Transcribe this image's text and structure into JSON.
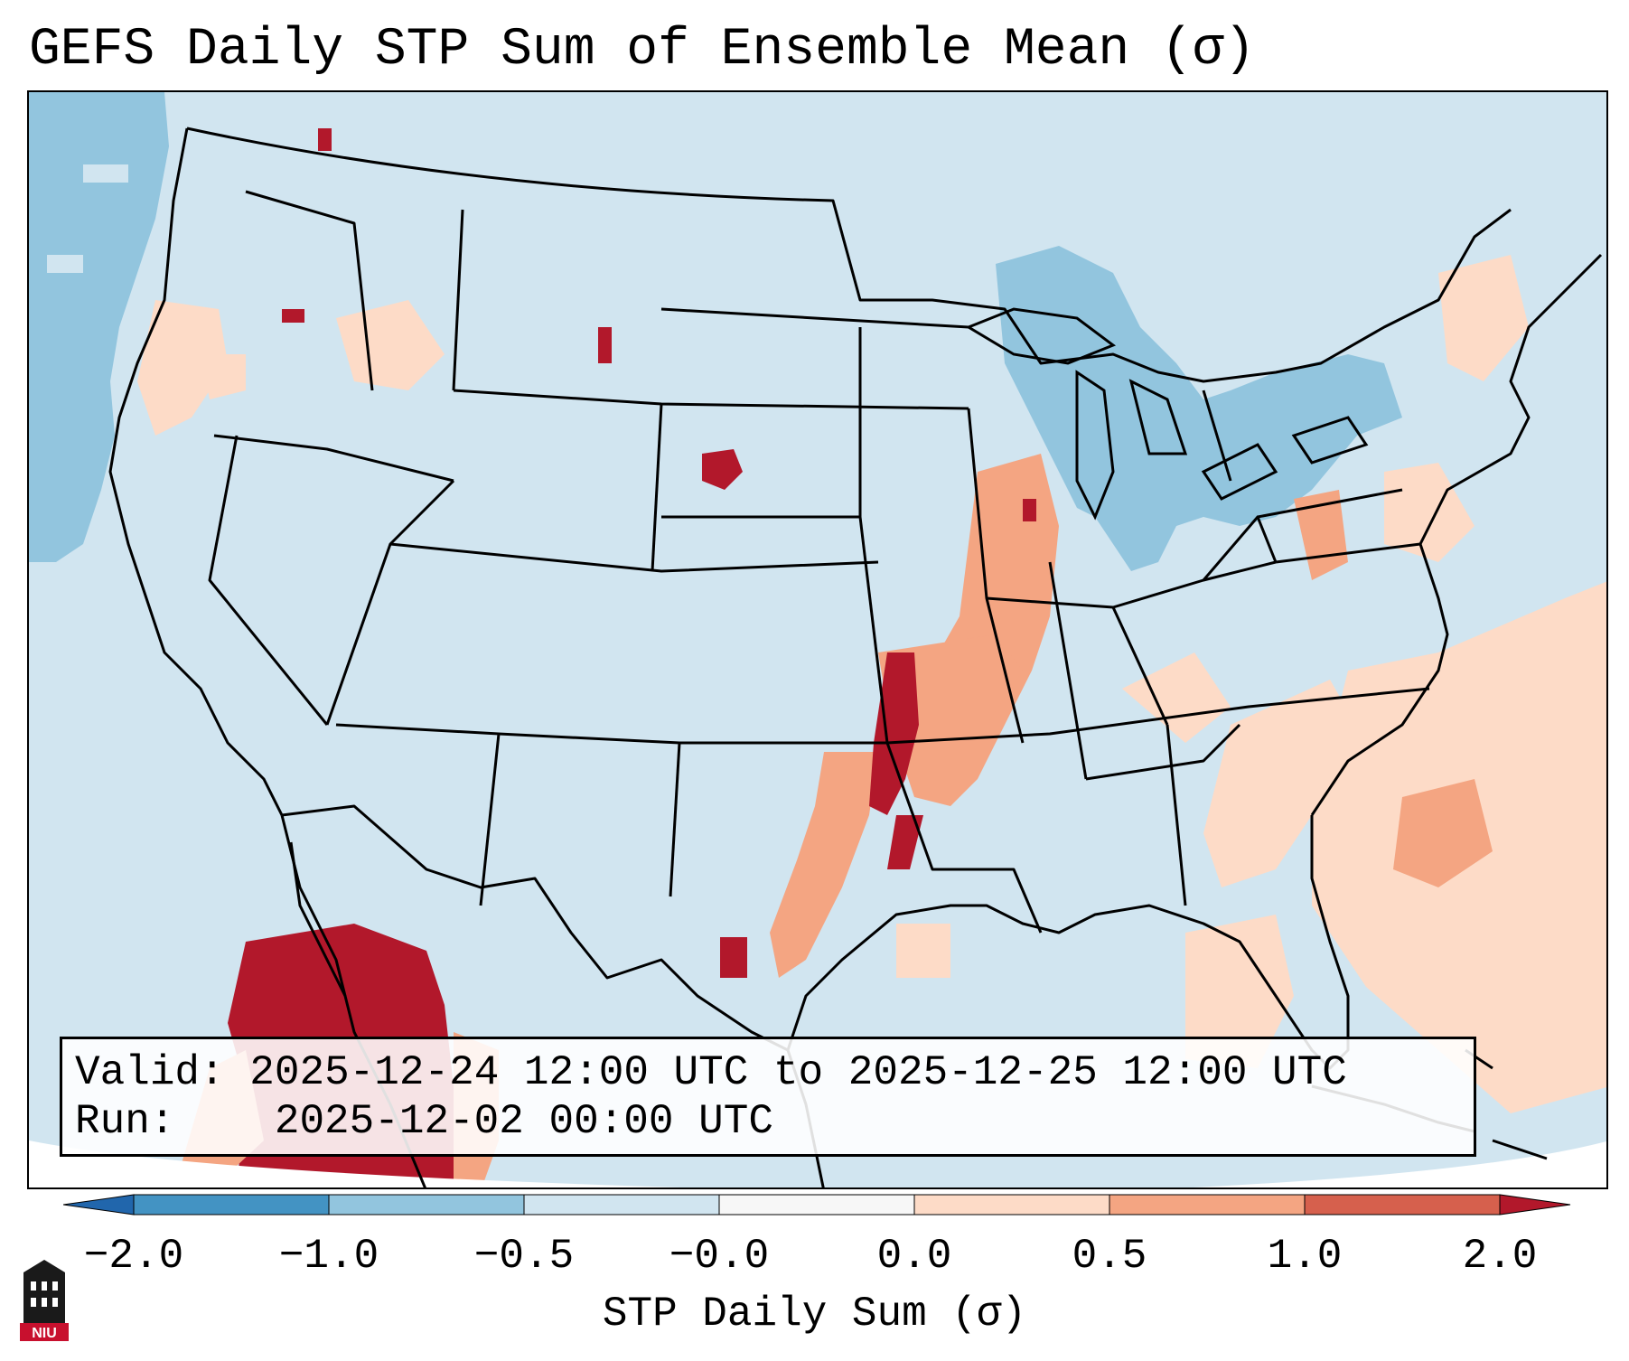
{
  "title": "GEFS Daily STP Sum of Ensemble Mean (σ)",
  "info": {
    "valid_label": "Valid:",
    "valid_value": "2025-12-24 12:00 UTC to 2025-12-25 12:00 UTC",
    "run_label": "Run:",
    "run_value": "2025-12-02 00:00 UTC"
  },
  "colorbar": {
    "label": "STP Daily Sum (σ)",
    "ticks": [
      "−2.0",
      "−1.0",
      "−0.5",
      "−0.0",
      "0.0",
      "0.5",
      "1.0",
      "2.0"
    ],
    "bin_colors": [
      "#4393c3",
      "#92c5de",
      "#d1e5f0",
      "#f7f7f7",
      "#fddbc7",
      "#f4a582",
      "#d6604d"
    ],
    "under_color": "#2166ac",
    "over_color": "#b2182b"
  },
  "logo": {
    "text": "NIU"
  },
  "colors": {
    "background_field": "#d1e5f0",
    "negative_weak": "#92c5de",
    "positive_weak": "#fddbc7",
    "positive_mid": "#f4a582",
    "positive_strong": "#b2182b",
    "near_zero": "#f7f7f7"
  }
}
